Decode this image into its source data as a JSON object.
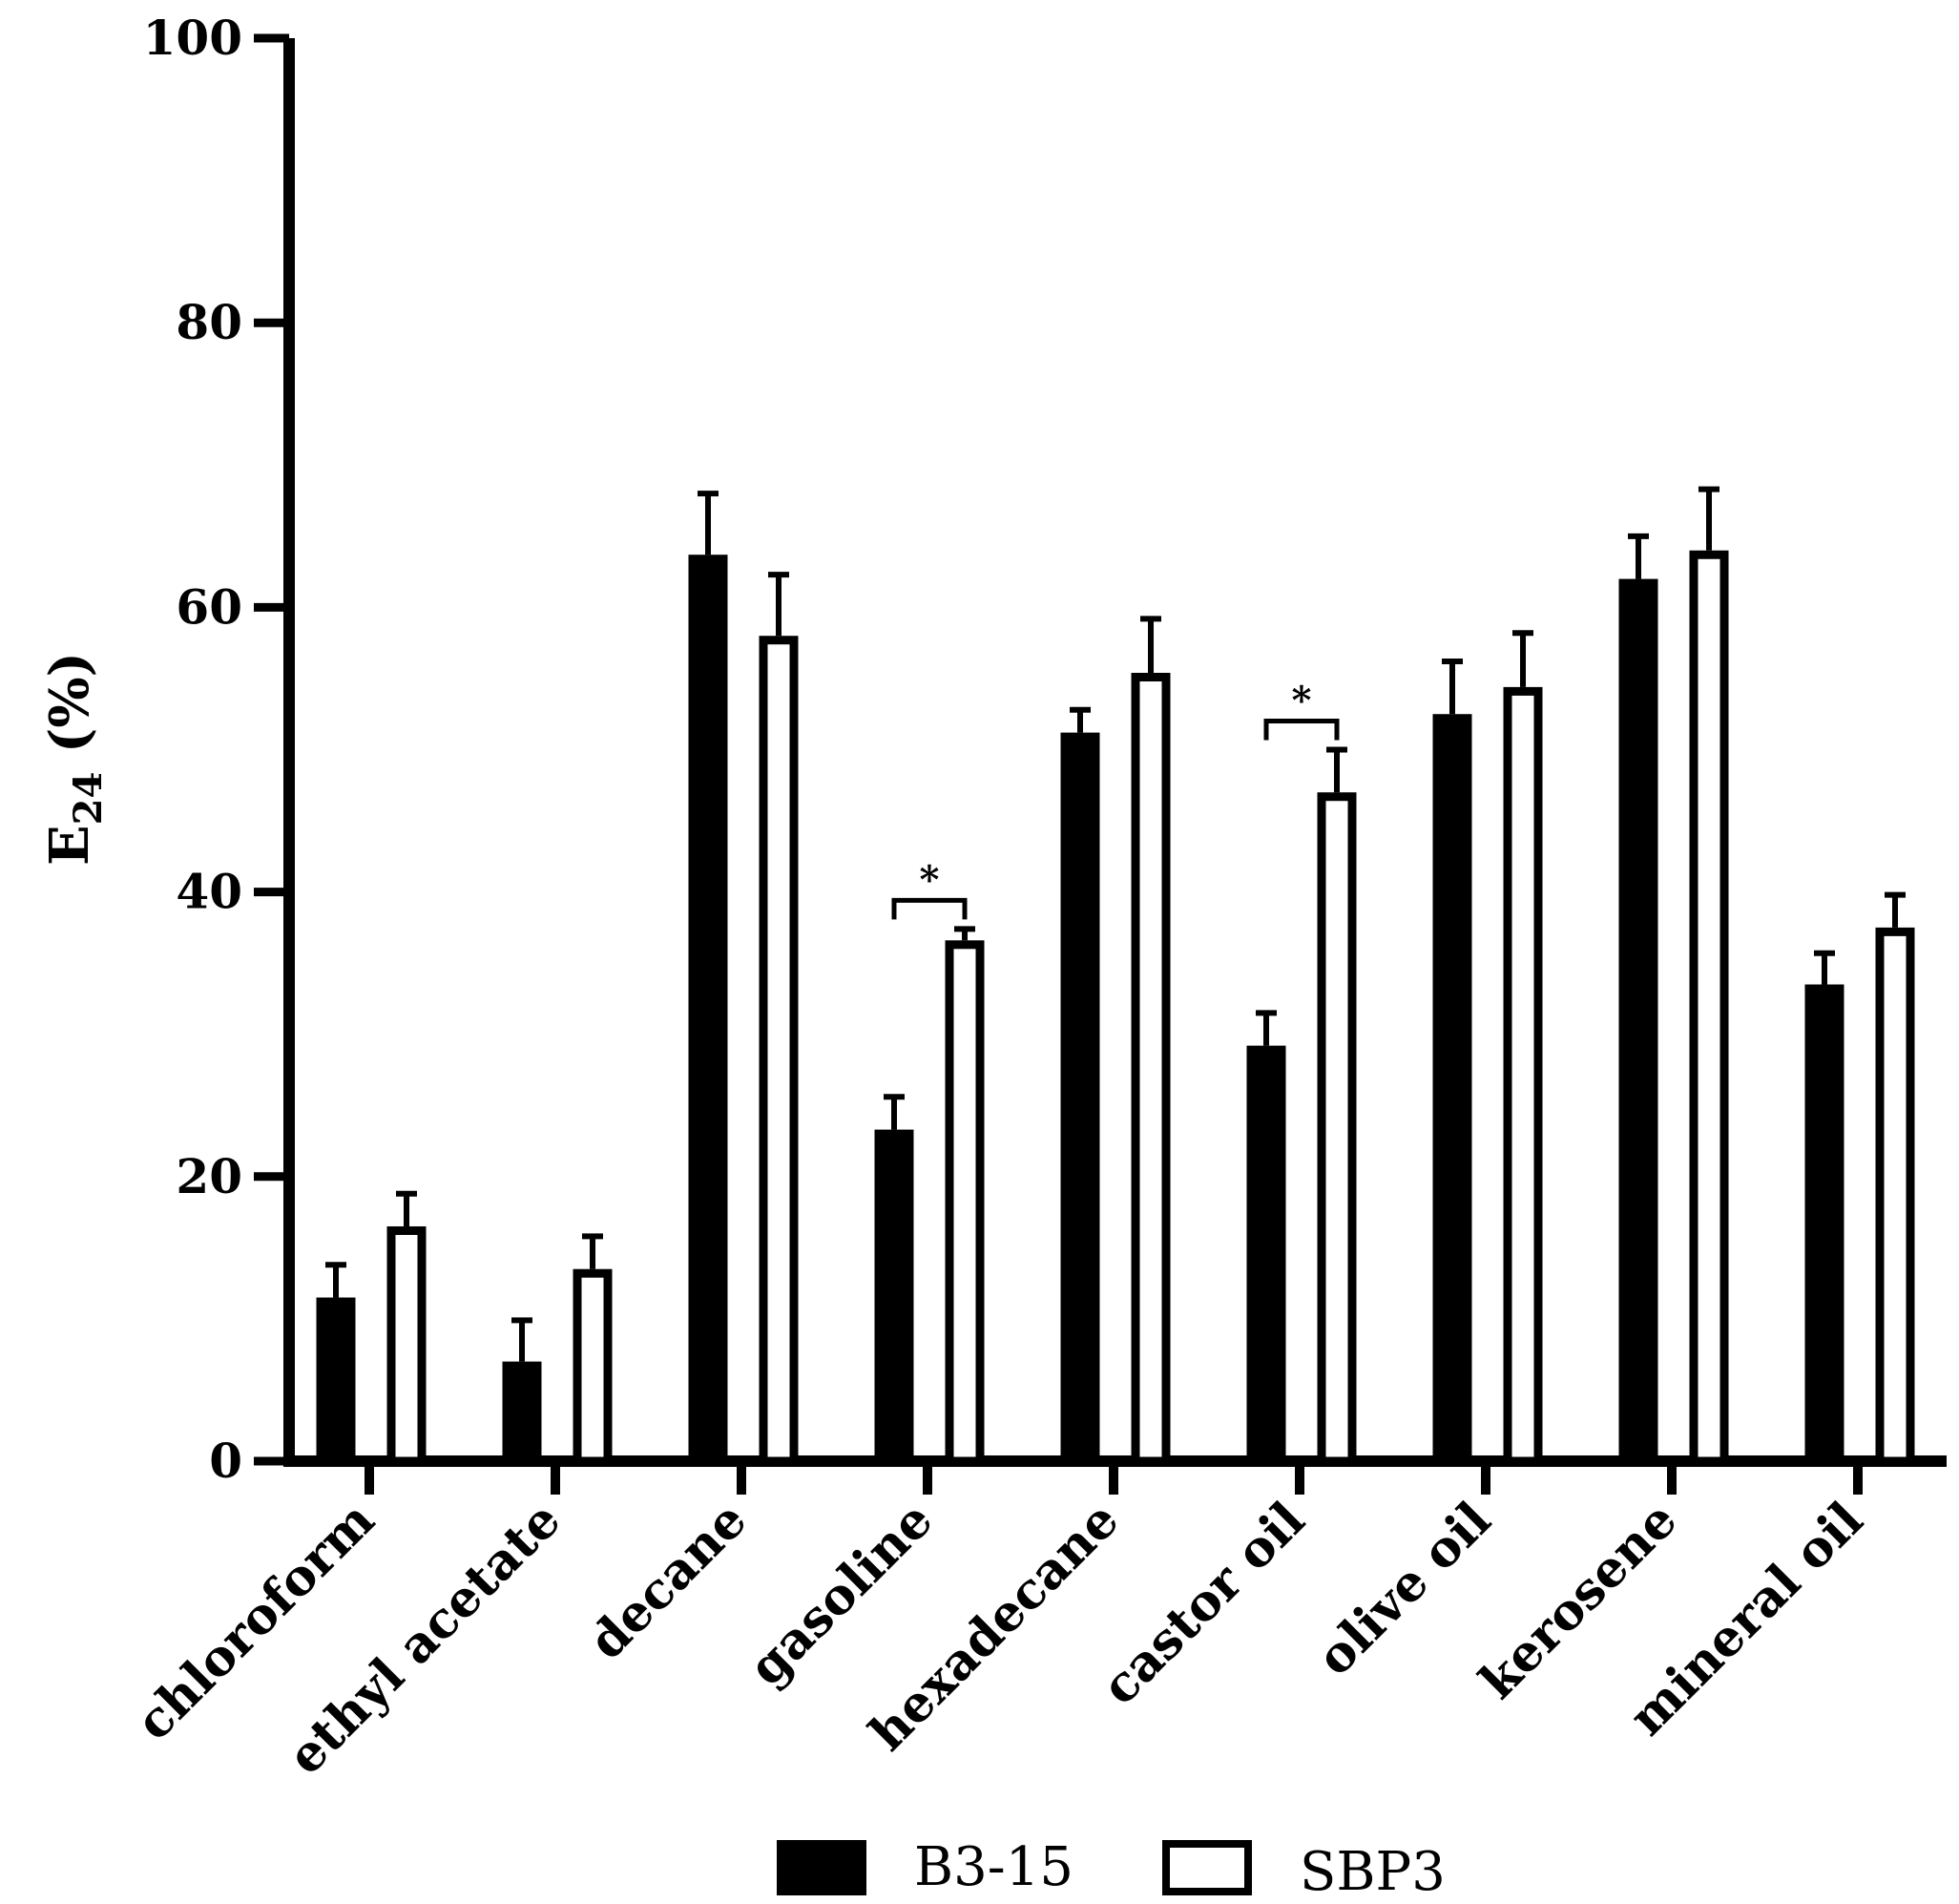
{
  "chart_data": {
    "type": "bar",
    "title": "",
    "xlabel": "",
    "ylabel": {
      "main": "E",
      "sub": "24",
      "suffix": " (%)"
    },
    "ylim": [
      0,
      100
    ],
    "yticks": [
      "0",
      "20",
      "40",
      "60",
      "80",
      "100"
    ],
    "ytick_values": [
      0,
      20,
      40,
      60,
      80,
      100
    ],
    "categories": [
      "chloroform",
      "ethyl acetate",
      "decane",
      "gasoline",
      "hexadecane",
      "castor oil",
      "olive oil",
      "kerosene",
      "mineral oil"
    ],
    "series": [
      {
        "name": "B3-15",
        "fill": "#000000",
        "values": [
          11.5,
          7.0,
          63.7,
          23.3,
          51.2,
          29.2,
          52.5,
          62.0,
          33.5
        ],
        "errors": [
          2.3,
          2.9,
          4.3,
          2.3,
          1.6,
          2.3,
          3.7,
          3.0,
          2.2
        ]
      },
      {
        "name": "SBP3",
        "fill": "#ffffff",
        "values": [
          16.5,
          13.5,
          58.0,
          36.6,
          55.4,
          47.0,
          54.4,
          64.0,
          37.5
        ],
        "errors": [
          2.3,
          2.3,
          4.3,
          0.8,
          3.8,
          3.0,
          3.8,
          4.3,
          2.3
        ]
      }
    ],
    "significance": [
      {
        "category": "gasoline",
        "label": "*"
      },
      {
        "category": "castor oil",
        "label": "*"
      }
    ],
    "legend": {
      "position": "bottom-center",
      "entries": [
        "B3-15",
        "SBP3"
      ]
    },
    "grid": false
  }
}
